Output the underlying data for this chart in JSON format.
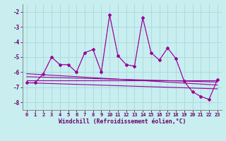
{
  "bg_color": "#c8eef0",
  "grid_color": "#a8d8dc",
  "line_color": "#990099",
  "xlabel": "Windchill (Refroidissement éolien,°C)",
  "xlim_min": -0.5,
  "xlim_max": 23.5,
  "ylim_min": -8.5,
  "ylim_max": -1.5,
  "yticks": [
    -8,
    -7,
    -6,
    -5,
    -4,
    -3,
    -2
  ],
  "xticks": [
    0,
    1,
    2,
    3,
    4,
    5,
    6,
    7,
    8,
    9,
    10,
    11,
    12,
    13,
    14,
    15,
    16,
    17,
    18,
    19,
    20,
    21,
    22,
    23
  ],
  "main_x": [
    0,
    1,
    2,
    3,
    4,
    5,
    6,
    7,
    8,
    9,
    10,
    11,
    12,
    13,
    14,
    15,
    16,
    17,
    18,
    19,
    20,
    21,
    22,
    23
  ],
  "main_y": [
    -6.7,
    -6.7,
    -6.1,
    -5.0,
    -5.5,
    -5.5,
    -6.0,
    -4.7,
    -4.5,
    -6.0,
    -2.2,
    -4.9,
    -5.5,
    -5.6,
    -2.4,
    -4.7,
    -5.2,
    -4.4,
    -5.1,
    -6.6,
    -7.3,
    -7.6,
    -7.8,
    -6.5
  ],
  "dotted_x": [
    0,
    1,
    2,
    3,
    4,
    5,
    6,
    7,
    8,
    9,
    10,
    11,
    12,
    13,
    14,
    15,
    16,
    17,
    18,
    19,
    20,
    21,
    22,
    23
  ],
  "dotted_y": [
    -6.7,
    -6.7,
    -6.1,
    -5.0,
    -5.5,
    -5.5,
    -6.0,
    -4.7,
    -4.5,
    -6.0,
    -2.2,
    -4.9,
    -5.5,
    -5.6,
    -2.4,
    -4.7,
    -5.2,
    -4.4,
    -5.1,
    -6.6,
    -7.3,
    -7.6,
    -7.8,
    -6.5
  ],
  "trend_lines": [
    {
      "x0": 0,
      "x1": 23,
      "y0": -6.55,
      "y1": -6.55
    },
    {
      "x0": 0,
      "x1": 23,
      "y0": -6.3,
      "y1": -6.65
    },
    {
      "x0": 0,
      "x1": 23,
      "y0": -6.1,
      "y1": -6.85
    },
    {
      "x0": 0,
      "x1": 23,
      "y0": -6.7,
      "y1": -7.1
    }
  ],
  "tick_color": "#660066",
  "tick_fontsize": 5.0,
  "xlabel_fontsize": 5.8,
  "spine_color": "#888888"
}
